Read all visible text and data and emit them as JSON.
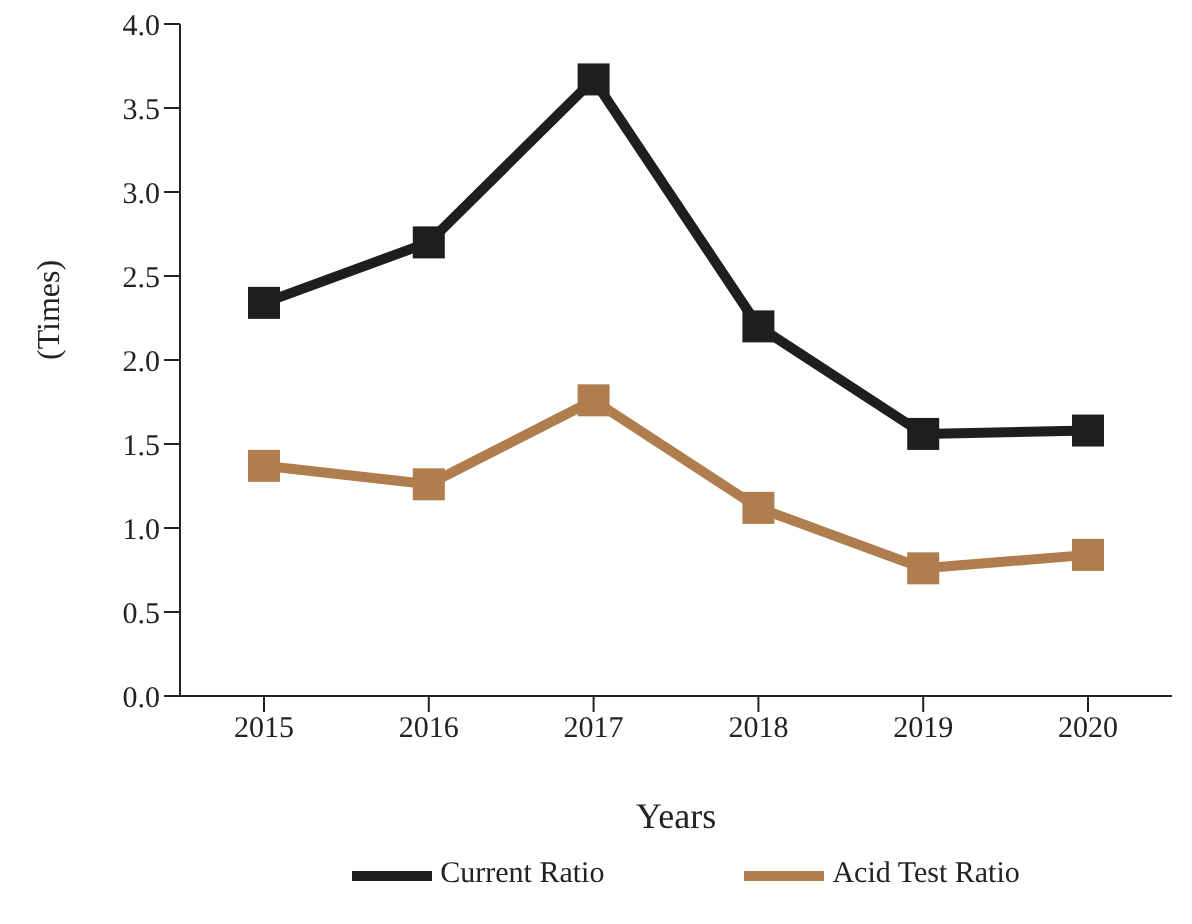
{
  "chart_data": {
    "type": "line",
    "xlabel": "Years",
    "ylabel": "(Times)",
    "categories": [
      "2015",
      "2016",
      "2017",
      "2018",
      "2019",
      "2020"
    ],
    "series": [
      {
        "name": "Current Ratio",
        "color": "#1e1e1e",
        "values": [
          2.34,
          2.7,
          3.67,
          2.2,
          1.56,
          1.58
        ]
      },
      {
        "name": "Acid Test Ratio",
        "color": "#b07d4e",
        "values": [
          1.37,
          1.26,
          1.76,
          1.12,
          0.76,
          0.84
        ]
      }
    ],
    "ylim": [
      0,
      4
    ],
    "yticks": [
      {
        "value": 0,
        "label": "0.0"
      },
      {
        "value": 0.5,
        "label": "0.5"
      },
      {
        "value": 1,
        "label": "1.0"
      },
      {
        "value": 1.5,
        "label": "1.5"
      },
      {
        "value": 2,
        "label": "2.0"
      },
      {
        "value": 2.5,
        "label": "2.5"
      },
      {
        "value": 3,
        "label": "3.0"
      },
      {
        "value": 3.5,
        "label": "3.5"
      },
      {
        "value": 4,
        "label": "4.0"
      }
    ],
    "grid": false,
    "legend": "bottom",
    "marker": "square",
    "line_style": "solid"
  }
}
